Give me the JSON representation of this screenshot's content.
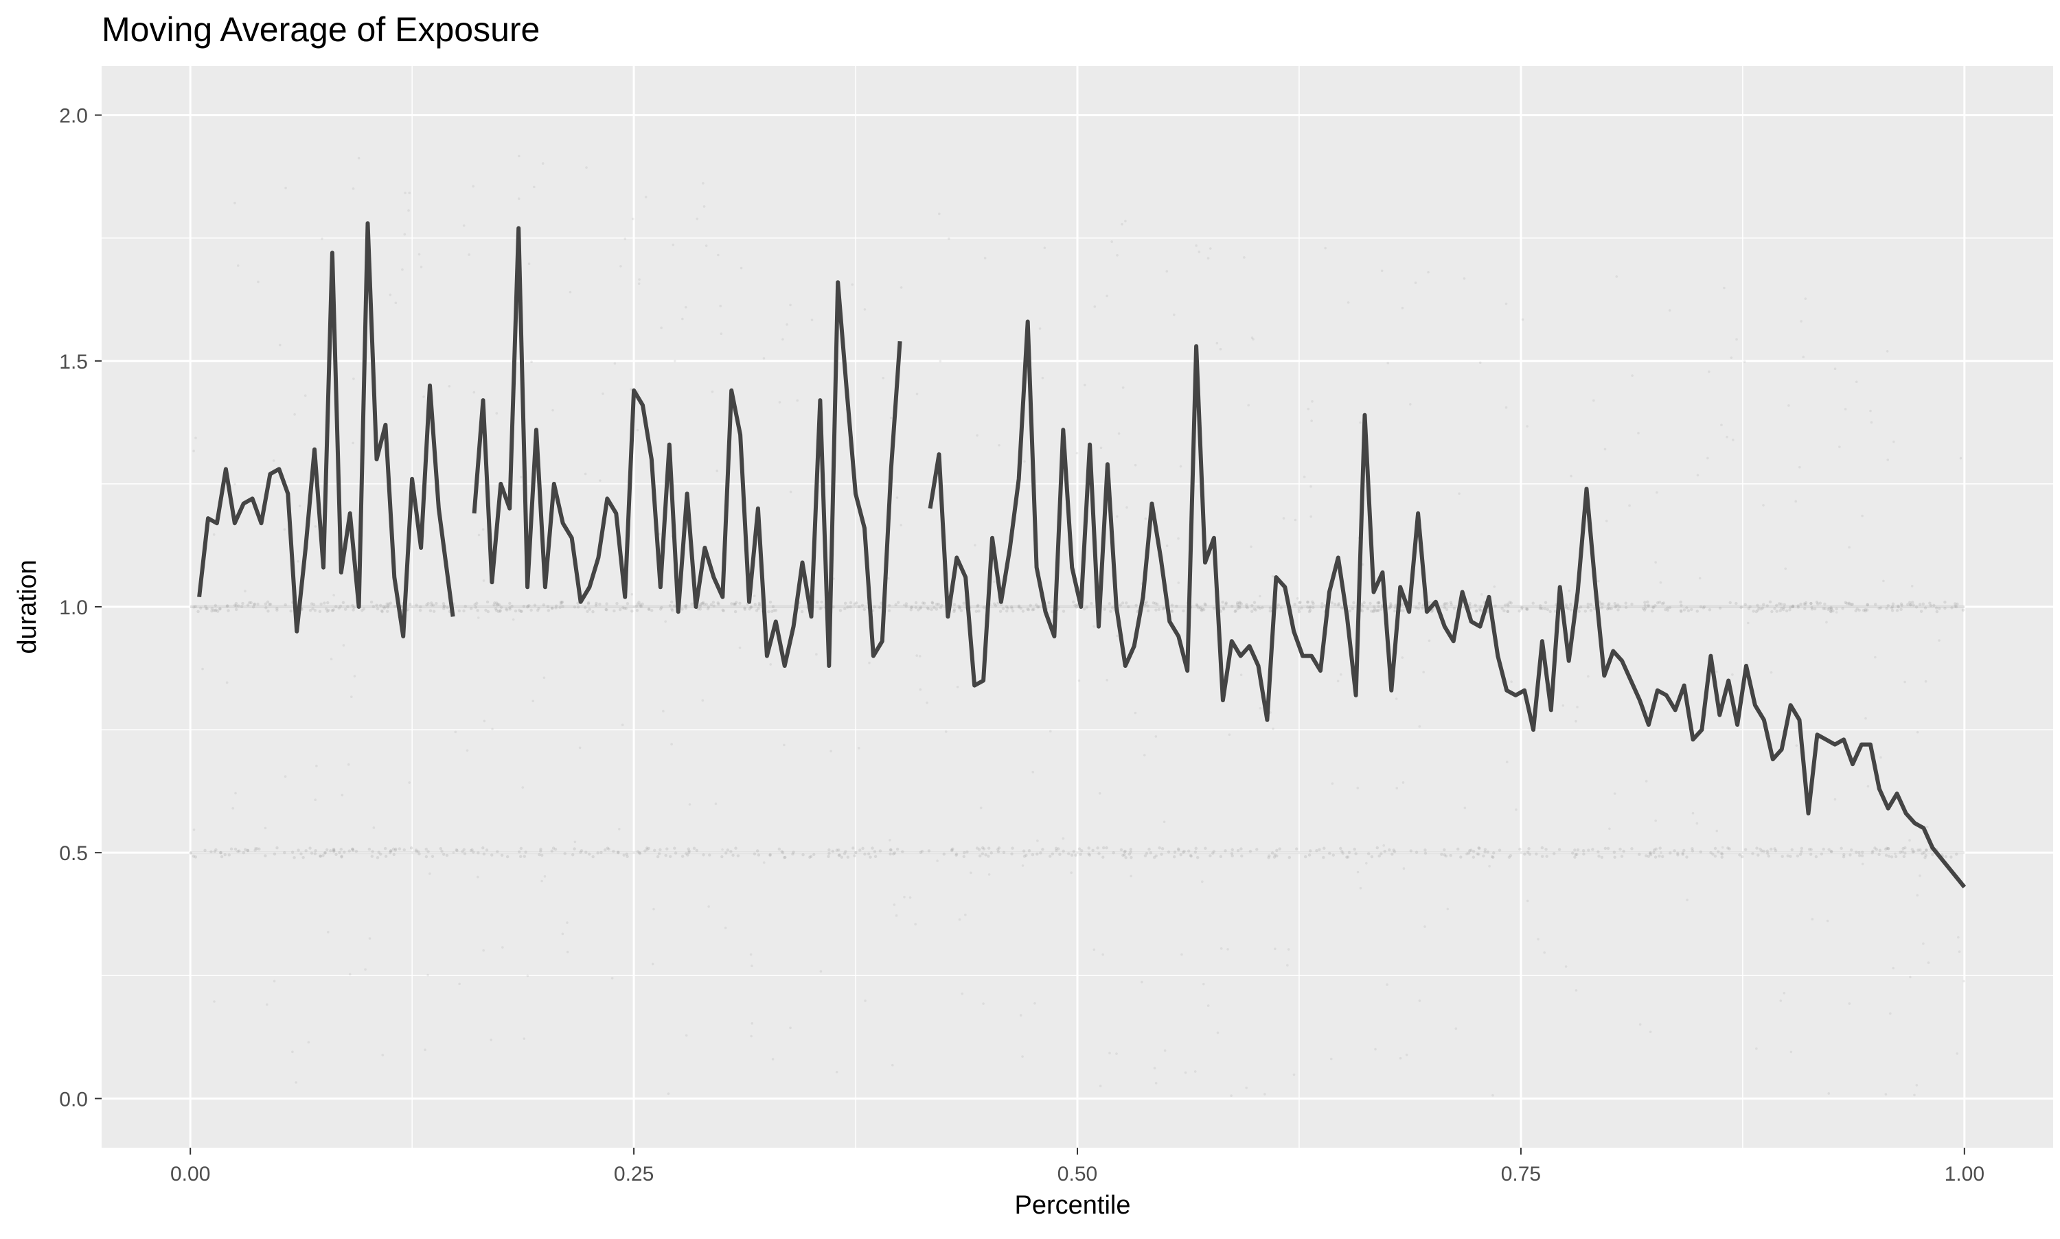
{
  "chart_data": {
    "type": "line",
    "title": "Moving Average of Exposure",
    "xlabel": "Percentile",
    "ylabel": "duration",
    "xlim": [
      -0.05,
      1.05
    ],
    "ylim": [
      -0.1,
      2.1
    ],
    "x_ticks": [
      {
        "value": 0.0,
        "label": "0.00"
      },
      {
        "value": 0.25,
        "label": "0.25"
      },
      {
        "value": 0.5,
        "label": "0.50"
      },
      {
        "value": 0.75,
        "label": "0.75"
      },
      {
        "value": 1.0,
        "label": "1.00"
      }
    ],
    "y_ticks": [
      {
        "value": 0.0,
        "label": "0.0"
      },
      {
        "value": 0.5,
        "label": "0.5"
      },
      {
        "value": 1.0,
        "label": "1.0"
      },
      {
        "value": 1.5,
        "label": "1.5"
      },
      {
        "value": 2.0,
        "label": "2.0"
      }
    ],
    "grid": true,
    "background": "#EBEBEB",
    "line_color": "#444444",
    "scatter_color": "#9a9a9a",
    "series": [
      {
        "style": "line",
        "segments": [
          [
            [
              0.005,
              1.02
            ],
            [
              0.01,
              1.18
            ],
            [
              0.015,
              1.17
            ],
            [
              0.02,
              1.28
            ],
            [
              0.025,
              1.17
            ],
            [
              0.03,
              1.21
            ],
            [
              0.035,
              1.22
            ],
            [
              0.04,
              1.17
            ],
            [
              0.045,
              1.27
            ],
            [
              0.05,
              1.28
            ],
            [
              0.055,
              1.23
            ],
            [
              0.06,
              0.95
            ],
            [
              0.065,
              1.12
            ],
            [
              0.07,
              1.32
            ],
            [
              0.075,
              1.08
            ],
            [
              0.08,
              1.72
            ],
            [
              0.085,
              1.07
            ],
            [
              0.09,
              1.19
            ],
            [
              0.095,
              1.0
            ],
            [
              0.1,
              1.78
            ],
            [
              0.105,
              1.3
            ],
            [
              0.11,
              1.37
            ],
            [
              0.115,
              1.06
            ],
            [
              0.12,
              0.94
            ],
            [
              0.125,
              1.26
            ],
            [
              0.13,
              1.12
            ],
            [
              0.135,
              1.45
            ],
            [
              0.14,
              1.2
            ],
            [
              0.148,
              0.98
            ]
          ],
          [
            [
              0.16,
              1.19
            ],
            [
              0.165,
              1.42
            ],
            [
              0.17,
              1.05
            ],
            [
              0.175,
              1.25
            ],
            [
              0.18,
              1.2
            ],
            [
              0.185,
              1.77
            ],
            [
              0.19,
              1.04
            ],
            [
              0.195,
              1.36
            ],
            [
              0.2,
              1.04
            ],
            [
              0.205,
              1.25
            ],
            [
              0.21,
              1.17
            ],
            [
              0.215,
              1.14
            ],
            [
              0.22,
              1.01
            ],
            [
              0.225,
              1.04
            ],
            [
              0.23,
              1.1
            ],
            [
              0.235,
              1.22
            ],
            [
              0.24,
              1.19
            ],
            [
              0.245,
              1.02
            ],
            [
              0.25,
              1.44
            ],
            [
              0.255,
              1.41
            ],
            [
              0.26,
              1.3
            ],
            [
              0.265,
              1.04
            ],
            [
              0.27,
              1.33
            ],
            [
              0.275,
              0.99
            ],
            [
              0.28,
              1.23
            ],
            [
              0.285,
              1.0
            ],
            [
              0.29,
              1.12
            ],
            [
              0.295,
              1.06
            ],
            [
              0.3,
              1.02
            ],
            [
              0.305,
              1.44
            ],
            [
              0.31,
              1.35
            ],
            [
              0.315,
              1.01
            ],
            [
              0.32,
              1.2
            ],
            [
              0.325,
              0.9
            ],
            [
              0.33,
              0.97
            ],
            [
              0.335,
              0.88
            ],
            [
              0.34,
              0.96
            ],
            [
              0.345,
              1.09
            ],
            [
              0.35,
              0.98
            ],
            [
              0.355,
              1.42
            ],
            [
              0.36,
              0.88
            ],
            [
              0.365,
              1.66
            ],
            [
              0.37,
              1.44
            ],
            [
              0.375,
              1.23
            ],
            [
              0.38,
              1.16
            ],
            [
              0.385,
              0.9
            ],
            [
              0.39,
              0.93
            ],
            [
              0.395,
              1.28
            ],
            [
              0.4,
              1.54
            ]
          ],
          [
            [
              0.417,
              1.2
            ],
            [
              0.422,
              1.31
            ],
            [
              0.427,
              0.98
            ],
            [
              0.432,
              1.1
            ],
            [
              0.437,
              1.06
            ],
            [
              0.442,
              0.84
            ],
            [
              0.447,
              0.85
            ],
            [
              0.452,
              1.14
            ],
            [
              0.457,
              1.01
            ],
            [
              0.462,
              1.12
            ],
            [
              0.467,
              1.26
            ],
            [
              0.472,
              1.58
            ],
            [
              0.477,
              1.08
            ],
            [
              0.482,
              0.99
            ],
            [
              0.487,
              0.94
            ],
            [
              0.492,
              1.36
            ],
            [
              0.497,
              1.08
            ],
            [
              0.502,
              1.0
            ],
            [
              0.507,
              1.33
            ],
            [
              0.512,
              0.96
            ],
            [
              0.517,
              1.29
            ],
            [
              0.522,
              1.0
            ],
            [
              0.527,
              0.88
            ],
            [
              0.532,
              0.92
            ],
            [
              0.537,
              1.02
            ],
            [
              0.542,
              1.21
            ],
            [
              0.547,
              1.1
            ],
            [
              0.552,
              0.97
            ],
            [
              0.557,
              0.94
            ],
            [
              0.562,
              0.87
            ],
            [
              0.567,
              1.53
            ],
            [
              0.572,
              1.09
            ],
            [
              0.577,
              1.14
            ],
            [
              0.582,
              0.81
            ],
            [
              0.587,
              0.93
            ],
            [
              0.592,
              0.9
            ],
            [
              0.597,
              0.92
            ],
            [
              0.602,
              0.88
            ],
            [
              0.607,
              0.77
            ],
            [
              0.612,
              1.06
            ],
            [
              0.617,
              1.04
            ],
            [
              0.622,
              0.95
            ],
            [
              0.627,
              0.9
            ],
            [
              0.632,
              0.9
            ],
            [
              0.637,
              0.87
            ],
            [
              0.642,
              1.03
            ],
            [
              0.647,
              1.1
            ],
            [
              0.652,
              0.98
            ],
            [
              0.657,
              0.82
            ],
            [
              0.662,
              1.39
            ],
            [
              0.667,
              1.03
            ],
            [
              0.672,
              1.07
            ],
            [
              0.677,
              0.83
            ],
            [
              0.682,
              1.04
            ],
            [
              0.687,
              0.99
            ],
            [
              0.692,
              1.19
            ],
            [
              0.697,
              0.99
            ],
            [
              0.702,
              1.01
            ],
            [
              0.707,
              0.96
            ],
            [
              0.712,
              0.93
            ],
            [
              0.717,
              1.03
            ],
            [
              0.722,
              0.97
            ],
            [
              0.727,
              0.96
            ],
            [
              0.732,
              1.02
            ],
            [
              0.737,
              0.9
            ],
            [
              0.742,
              0.83
            ],
            [
              0.747,
              0.82
            ],
            [
              0.752,
              0.83
            ],
            [
              0.757,
              0.75
            ],
            [
              0.762,
              0.93
            ],
            [
              0.767,
              0.79
            ],
            [
              0.772,
              1.04
            ],
            [
              0.777,
              0.89
            ],
            [
              0.782,
              1.03
            ],
            [
              0.787,
              1.24
            ],
            [
              0.792,
              1.04
            ],
            [
              0.797,
              0.86
            ],
            [
              0.802,
              0.91
            ],
            [
              0.807,
              0.89
            ],
            [
              0.812,
              0.85
            ],
            [
              0.817,
              0.81
            ],
            [
              0.822,
              0.76
            ],
            [
              0.827,
              0.83
            ],
            [
              0.832,
              0.82
            ],
            [
              0.837,
              0.79
            ],
            [
              0.842,
              0.84
            ],
            [
              0.847,
              0.73
            ],
            [
              0.852,
              0.75
            ],
            [
              0.857,
              0.9
            ],
            [
              0.862,
              0.78
            ],
            [
              0.867,
              0.85
            ],
            [
              0.872,
              0.76
            ],
            [
              0.877,
              0.88
            ],
            [
              0.882,
              0.8
            ],
            [
              0.887,
              0.77
            ],
            [
              0.892,
              0.69
            ],
            [
              0.897,
              0.71
            ],
            [
              0.902,
              0.8
            ],
            [
              0.907,
              0.77
            ],
            [
              0.912,
              0.58
            ],
            [
              0.917,
              0.74
            ],
            [
              0.922,
              0.73
            ],
            [
              0.927,
              0.72
            ],
            [
              0.932,
              0.73
            ],
            [
              0.937,
              0.68
            ],
            [
              0.942,
              0.72
            ],
            [
              0.947,
              0.72
            ],
            [
              0.952,
              0.63
            ],
            [
              0.957,
              0.59
            ],
            [
              0.962,
              0.62
            ],
            [
              0.967,
              0.58
            ],
            [
              0.972,
              0.56
            ],
            [
              0.977,
              0.55
            ],
            [
              0.982,
              0.51
            ],
            [
              1.0,
              0.43
            ]
          ]
        ]
      },
      {
        "style": "scatter",
        "density_bands": [
          {
            "y": 1.0,
            "range": [
              0.0,
              1.0
            ],
            "strength": 0.9
          },
          {
            "y": 0.5,
            "range": [
              0.0,
              1.0
            ],
            "strength": 0.6
          },
          {
            "y_range": [
              0.0,
              2.0
            ],
            "x_range": [
              0.0,
              1.0
            ],
            "strength": 0.25
          }
        ]
      }
    ]
  }
}
